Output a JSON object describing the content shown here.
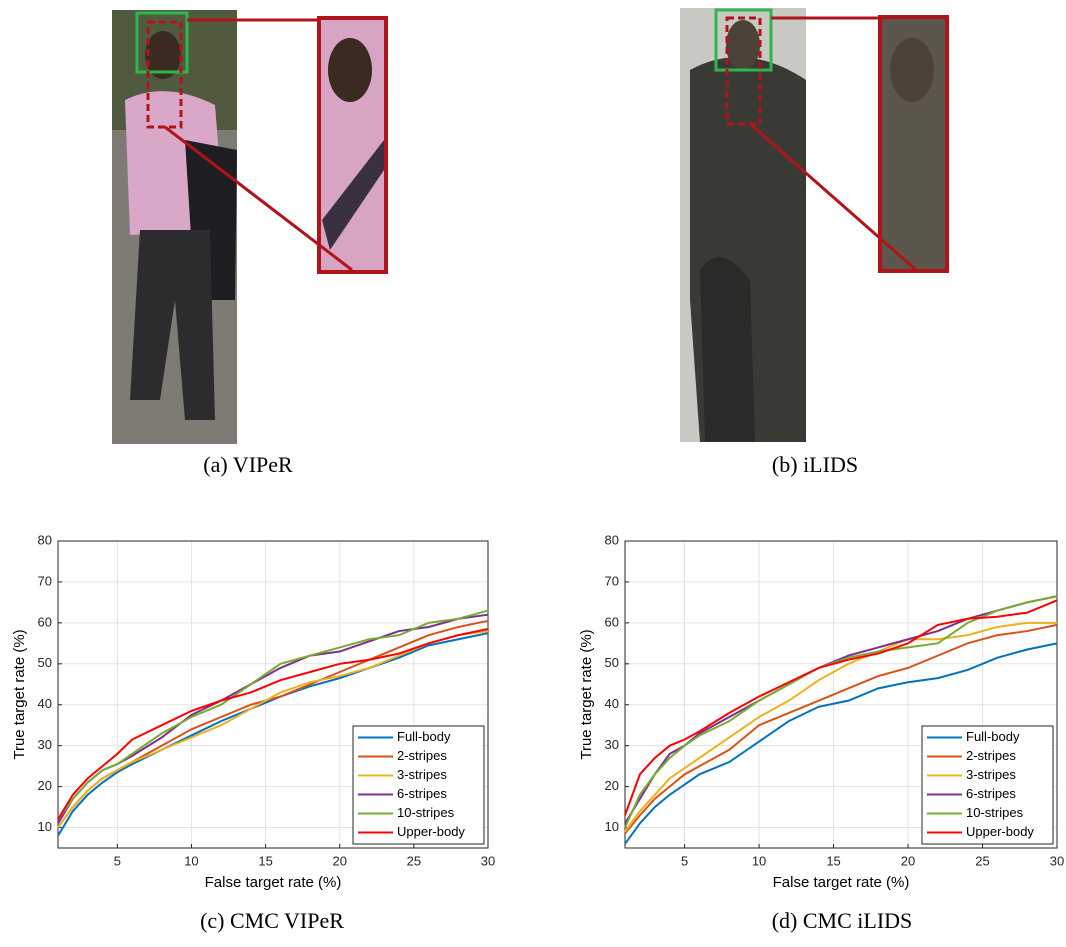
{
  "panels": [
    {
      "caption": "(a) VIPeR"
    },
    {
      "caption": "(b) iLIDS"
    }
  ],
  "chart_data": [
    {
      "type": "line",
      "caption": "(c) CMC VIPeR",
      "x_label": "False target rate (%)",
      "y_label": "True target rate (%)",
      "xlim": [
        1,
        30
      ],
      "ylim": [
        5,
        80
      ],
      "xticks": [
        5,
        10,
        15,
        20,
        25,
        30
      ],
      "yticks": [
        10,
        20,
        30,
        40,
        50,
        60,
        70,
        80
      ],
      "grid": true,
      "legend": "lower right",
      "x": [
        1,
        2,
        3,
        4,
        5,
        6,
        8,
        10,
        12,
        14,
        16,
        18,
        20,
        22,
        24,
        26,
        28,
        30
      ],
      "series": [
        {
          "name": "Full-body",
          "color": "#0072BD",
          "values": [
            8,
            14,
            18,
            21,
            23.5,
            25.5,
            29,
            32.5,
            36,
            39,
            42,
            44.5,
            46.5,
            49,
            51.5,
            54.5,
            56,
            57.5
          ]
        },
        {
          "name": "2-stripes",
          "color": "#D95319",
          "values": [
            10,
            15,
            19,
            22,
            24,
            26,
            30,
            34,
            37,
            40,
            42,
            45,
            48,
            51,
            54,
            57,
            59,
            60.5
          ]
        },
        {
          "name": "3-stripes",
          "color": "#EDB120",
          "values": [
            10,
            15,
            19,
            22,
            24,
            26,
            29,
            32,
            35,
            39,
            43,
            45.5,
            47,
            49,
            52,
            55,
            57,
            58
          ]
        },
        {
          "name": "6-stripes",
          "color": "#7E2F8E",
          "values": [
            11,
            17,
            21,
            24,
            25.5,
            27.5,
            32,
            37.5,
            41,
            45,
            49,
            52,
            53,
            55.5,
            58,
            59,
            61,
            62
          ]
        },
        {
          "name": "10-stripes",
          "color": "#77AC30",
          "values": [
            12,
            17,
            21,
            24,
            25.5,
            28,
            33,
            37,
            40,
            45,
            50,
            52,
            54,
            56,
            57,
            60,
            61,
            63
          ]
        },
        {
          "name": "Upper-body",
          "color": "#FF0000",
          "values": [
            12,
            18,
            22,
            25,
            28,
            31.5,
            35,
            38.5,
            41,
            43,
            46,
            48,
            50,
            51,
            52.5,
            55,
            57,
            58.5
          ]
        }
      ]
    },
    {
      "type": "line",
      "caption": "(d) CMC iLIDS",
      "x_label": "False target rate (%)",
      "y_label": "True target rate (%)",
      "xlim": [
        1,
        30
      ],
      "ylim": [
        5,
        80
      ],
      "xticks": [
        5,
        10,
        15,
        20,
        25,
        30
      ],
      "yticks": [
        10,
        20,
        30,
        40,
        50,
        60,
        70,
        80
      ],
      "grid": true,
      "legend": "lower right",
      "x": [
        1,
        2,
        3,
        4,
        5,
        6,
        8,
        10,
        12,
        14,
        16,
        18,
        20,
        22,
        24,
        26,
        28,
        30
      ],
      "series": [
        {
          "name": "Full-body",
          "color": "#0072BD",
          "values": [
            6,
            11,
            15,
            18,
            20.5,
            23,
            26,
            31,
            36,
            39.5,
            41,
            44,
            45.5,
            46.5,
            48.5,
            51.5,
            53.5,
            55
          ]
        },
        {
          "name": "2-stripes",
          "color": "#D95319",
          "values": [
            8.5,
            13,
            17,
            20,
            23,
            25,
            29,
            35,
            38,
            41,
            44,
            47,
            49,
            52,
            55,
            57,
            58,
            59.5
          ]
        },
        {
          "name": "3-stripes",
          "color": "#EDB120",
          "values": [
            9,
            14,
            18,
            22,
            24.5,
            27,
            32,
            37,
            41,
            46,
            50,
            53,
            56,
            56,
            57,
            59,
            60,
            60
          ]
        },
        {
          "name": "6-stripes",
          "color": "#7E2F8E",
          "values": [
            11,
            17,
            23,
            28,
            30,
            33,
            37,
            41,
            45,
            49,
            52,
            54,
            56,
            58,
            61,
            63,
            65,
            66.5
          ]
        },
        {
          "name": "10-stripes",
          "color": "#77AC30",
          "values": [
            10,
            18,
            23,
            27,
            30,
            32.5,
            36,
            41,
            45,
            49,
            51.5,
            53,
            54,
            55,
            60,
            63,
            65,
            66.5
          ]
        },
        {
          "name": "Upper-body",
          "color": "#FF0000",
          "values": [
            13,
            23,
            27,
            30,
            31.5,
            33.5,
            38,
            42,
            45.5,
            49,
            51,
            52.5,
            55,
            59.5,
            61,
            61.5,
            62.5,
            65.5
          ]
        }
      ]
    }
  ]
}
